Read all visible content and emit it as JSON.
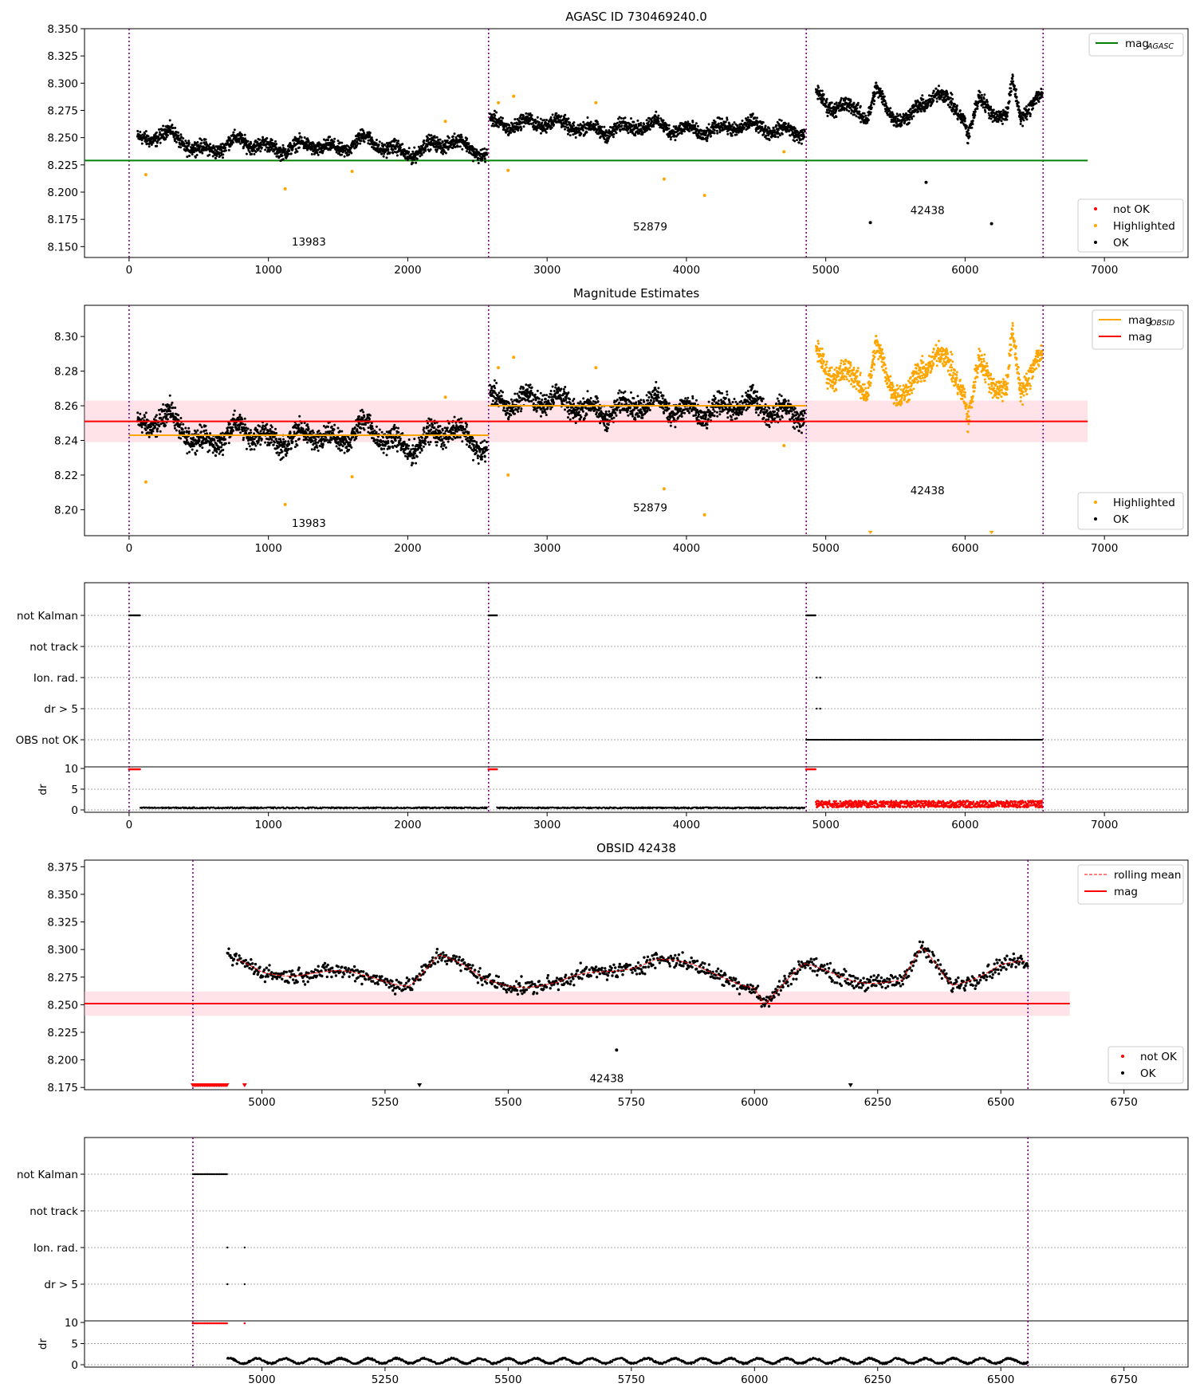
{
  "figure": {
    "vlines": [
      0,
      2580,
      4860,
      6560
    ],
    "vlines_obs": [
      4860,
      6555
    ],
    "colors": {
      "ok": "#000000",
      "notok": "#ff0000",
      "highlight": "#ffa500",
      "agasc": "#008000",
      "obsid_mean": "#ffa500",
      "mag": "#ff0000",
      "band": "#ffc0cb",
      "vline": "#800080"
    }
  },
  "chart_data": [
    {
      "id": "p1",
      "type": "scatter",
      "title": "AGASC ID 730469240.0",
      "xlim": [
        -320,
        7600
      ],
      "ylim": [
        8.14,
        8.35
      ],
      "xticks": [
        0,
        1000,
        2000,
        3000,
        4000,
        5000,
        6000,
        7000
      ],
      "yticks": [
        8.15,
        8.175,
        8.2,
        8.225,
        8.25,
        8.275,
        8.3,
        8.325,
        8.35
      ],
      "ytick_decimals": 3,
      "lines": [
        {
          "name": "mag$_{AGASC}$",
          "legend_main": "mag",
          "legend_sub": "AGASC",
          "color": "#008000",
          "segments": [
            {
              "x": [
                -320,
                6880
              ],
              "y": [
                8.229,
                8.229
              ]
            }
          ]
        }
      ],
      "segments": [
        {
          "obsid": "13983",
          "label_x": 1290,
          "label_y": 8.151,
          "x_start": 60,
          "x_end": 2570,
          "y_pts": [
            [
              60,
              8.245
            ],
            [
              300,
              8.252
            ],
            [
              500,
              8.241
            ],
            [
              800,
              8.245
            ],
            [
              1000,
              8.238
            ],
            [
              1300,
              8.247
            ],
            [
              1500,
              8.236
            ],
            [
              1700,
              8.247
            ],
            [
              2000,
              8.238
            ],
            [
              2300,
              8.244
            ],
            [
              2570,
              8.236
            ]
          ],
          "spread": 0.0055,
          "color": "#000000",
          "highlighted": [
            [
              120,
              8.216
            ],
            [
              1120,
              8.203
            ],
            [
              1600,
              8.219
            ],
            [
              2270,
              8.265
            ]
          ]
        },
        {
          "obsid": "52879",
          "label_x": 3740,
          "label_y": 8.165,
          "x_start": 2590,
          "x_end": 4850,
          "y_pts": [
            [
              2590,
              8.266
            ],
            [
              3000,
              8.261
            ],
            [
              3500,
              8.259
            ],
            [
              4000,
              8.259
            ],
            [
              4500,
              8.258
            ],
            [
              4850,
              8.258
            ]
          ],
          "spread": 0.0055,
          "color": "#000000",
          "highlighted": [
            [
              2650,
              8.282
            ],
            [
              2720,
              8.22
            ],
            [
              2760,
              8.288
            ],
            [
              3350,
              8.282
            ],
            [
              3840,
              8.212
            ],
            [
              4130,
              8.197
            ],
            [
              4700,
              8.237
            ]
          ]
        },
        {
          "obsid": "42438",
          "label_x": 5730,
          "label_y": 8.18,
          "x_start": 4930,
          "x_end": 6555,
          "y_pts": [
            [
              4930,
              8.291
            ],
            [
              5000,
              8.279
            ],
            [
              5100,
              8.277
            ],
            [
              5200,
              8.272
            ],
            [
              5300,
              8.27
            ],
            [
              5360,
              8.295
            ],
            [
              5450,
              8.275
            ],
            [
              5600,
              8.27
            ],
            [
              5800,
              8.29
            ],
            [
              5900,
              8.276
            ],
            [
              6000,
              8.268
            ],
            [
              6020,
              8.252
            ],
            [
              6100,
              8.285
            ],
            [
              6200,
              8.278
            ],
            [
              6300,
              8.272
            ],
            [
              6340,
              8.3
            ],
            [
              6400,
              8.268
            ],
            [
              6500,
              8.285
            ],
            [
              6555,
              8.283
            ]
          ],
          "spread": 0.006,
          "color": "#000000",
          "outliers": [
            [
              5320,
              8.172
            ],
            [
              5720,
              8.209
            ],
            [
              6190,
              8.171
            ]
          ]
        }
      ],
      "legend": [
        "not OK",
        "Highlighted",
        "OK"
      ]
    },
    {
      "id": "p2",
      "type": "scatter",
      "title": "Magnitude Estimates",
      "xlim": [
        -320,
        7600
      ],
      "ylim": [
        8.185,
        8.318
      ],
      "xticks": [
        0,
        1000,
        2000,
        3000,
        4000,
        5000,
        6000,
        7000
      ],
      "yticks": [
        8.2,
        8.22,
        8.24,
        8.26,
        8.28,
        8.3
      ],
      "ytick_decimals": 2,
      "band": {
        "x": [
          -320,
          6880
        ],
        "y": [
          8.239,
          8.263
        ]
      },
      "lines": [
        {
          "name": "mag$_{OBSID}$",
          "legend_main": "mag",
          "legend_sub": "OBSID",
          "color": "#ffa500",
          "segments": [
            {
              "x": [
                0,
                2580
              ],
              "y": [
                8.243,
                8.243
              ]
            },
            {
              "x": [
                2580,
                4860
              ],
              "y": [
                8.26,
                8.26
              ]
            }
          ]
        },
        {
          "name": "mag",
          "legend_main": "mag",
          "color": "#ff0000",
          "segments": [
            {
              "x": [
                -320,
                6880
              ],
              "y": [
                8.251,
                8.251
              ]
            }
          ]
        }
      ],
      "annotations": [
        {
          "text": "13983",
          "x": 1290,
          "y": 8.19
        },
        {
          "text": "52879",
          "x": 3740,
          "y": 8.199
        },
        {
          "text": "42438",
          "x": 5730,
          "y": 8.209
        }
      ],
      "legend": [
        "Highlighted",
        "OK"
      ]
    },
    {
      "id": "p3",
      "type": "scatter",
      "title": "",
      "xlim": [
        -320,
        7600
      ],
      "flag_labels": [
        "not Kalman",
        "not track",
        "Ion. rad.",
        "dr > 5",
        "OBS not OK"
      ],
      "xticks": [
        0,
        1000,
        2000,
        3000,
        4000,
        5000,
        6000,
        7000
      ],
      "dr_ylabel": "dr",
      "dr_yticks": [
        0,
        5,
        10
      ],
      "flag_data": {
        "not_kalman": [
          [
            0,
            80
          ],
          [
            2580,
            2640
          ],
          [
            4860,
            4930
          ]
        ],
        "ion_rad": [
          4930,
          4960
        ],
        "dr5": [
          4930,
          4960
        ],
        "obs_not_ok": [
          [
            4860,
            6560
          ]
        ]
      }
    },
    {
      "id": "p4",
      "type": "scatter",
      "title": "OBSID 42438",
      "xlim": [
        4640,
        6880
      ],
      "ylim": [
        8.173,
        8.381
      ],
      "xticks": [
        5000,
        5250,
        5500,
        5750,
        6000,
        6250,
        6500,
        6750
      ],
      "yticks": [
        8.175,
        8.2,
        8.225,
        8.25,
        8.275,
        8.3,
        8.325,
        8.35,
        8.375
      ],
      "ytick_decimals": 3,
      "band": {
        "x": [
          4640,
          6640
        ],
        "y": [
          8.24,
          8.262
        ]
      },
      "lines": [
        {
          "name": "rolling mean",
          "legend_main": "rolling mean",
          "dashed": true,
          "color": "#ff0000"
        },
        {
          "name": "mag",
          "legend_main": "mag",
          "color": "#ff0000",
          "segments": [
            {
              "x": [
                4640,
                6640
              ],
              "y": [
                8.251,
                8.251
              ]
            }
          ]
        }
      ],
      "annotations": [
        {
          "text": "42438",
          "x": 5700,
          "y": 8.18
        }
      ],
      "legend": [
        "not OK",
        "OK"
      ]
    },
    {
      "id": "p5",
      "type": "scatter",
      "title": "",
      "xlim": [
        4640,
        6880
      ],
      "flag_labels": [
        "not Kalman",
        "not track",
        "Ion. rad.",
        "dr > 5"
      ],
      "xticks": [
        5000,
        5250,
        5500,
        5750,
        6000,
        6250,
        6500,
        6750
      ],
      "dr_ylabel": "dr",
      "dr_yticks": [
        0,
        5,
        10
      ]
    }
  ]
}
